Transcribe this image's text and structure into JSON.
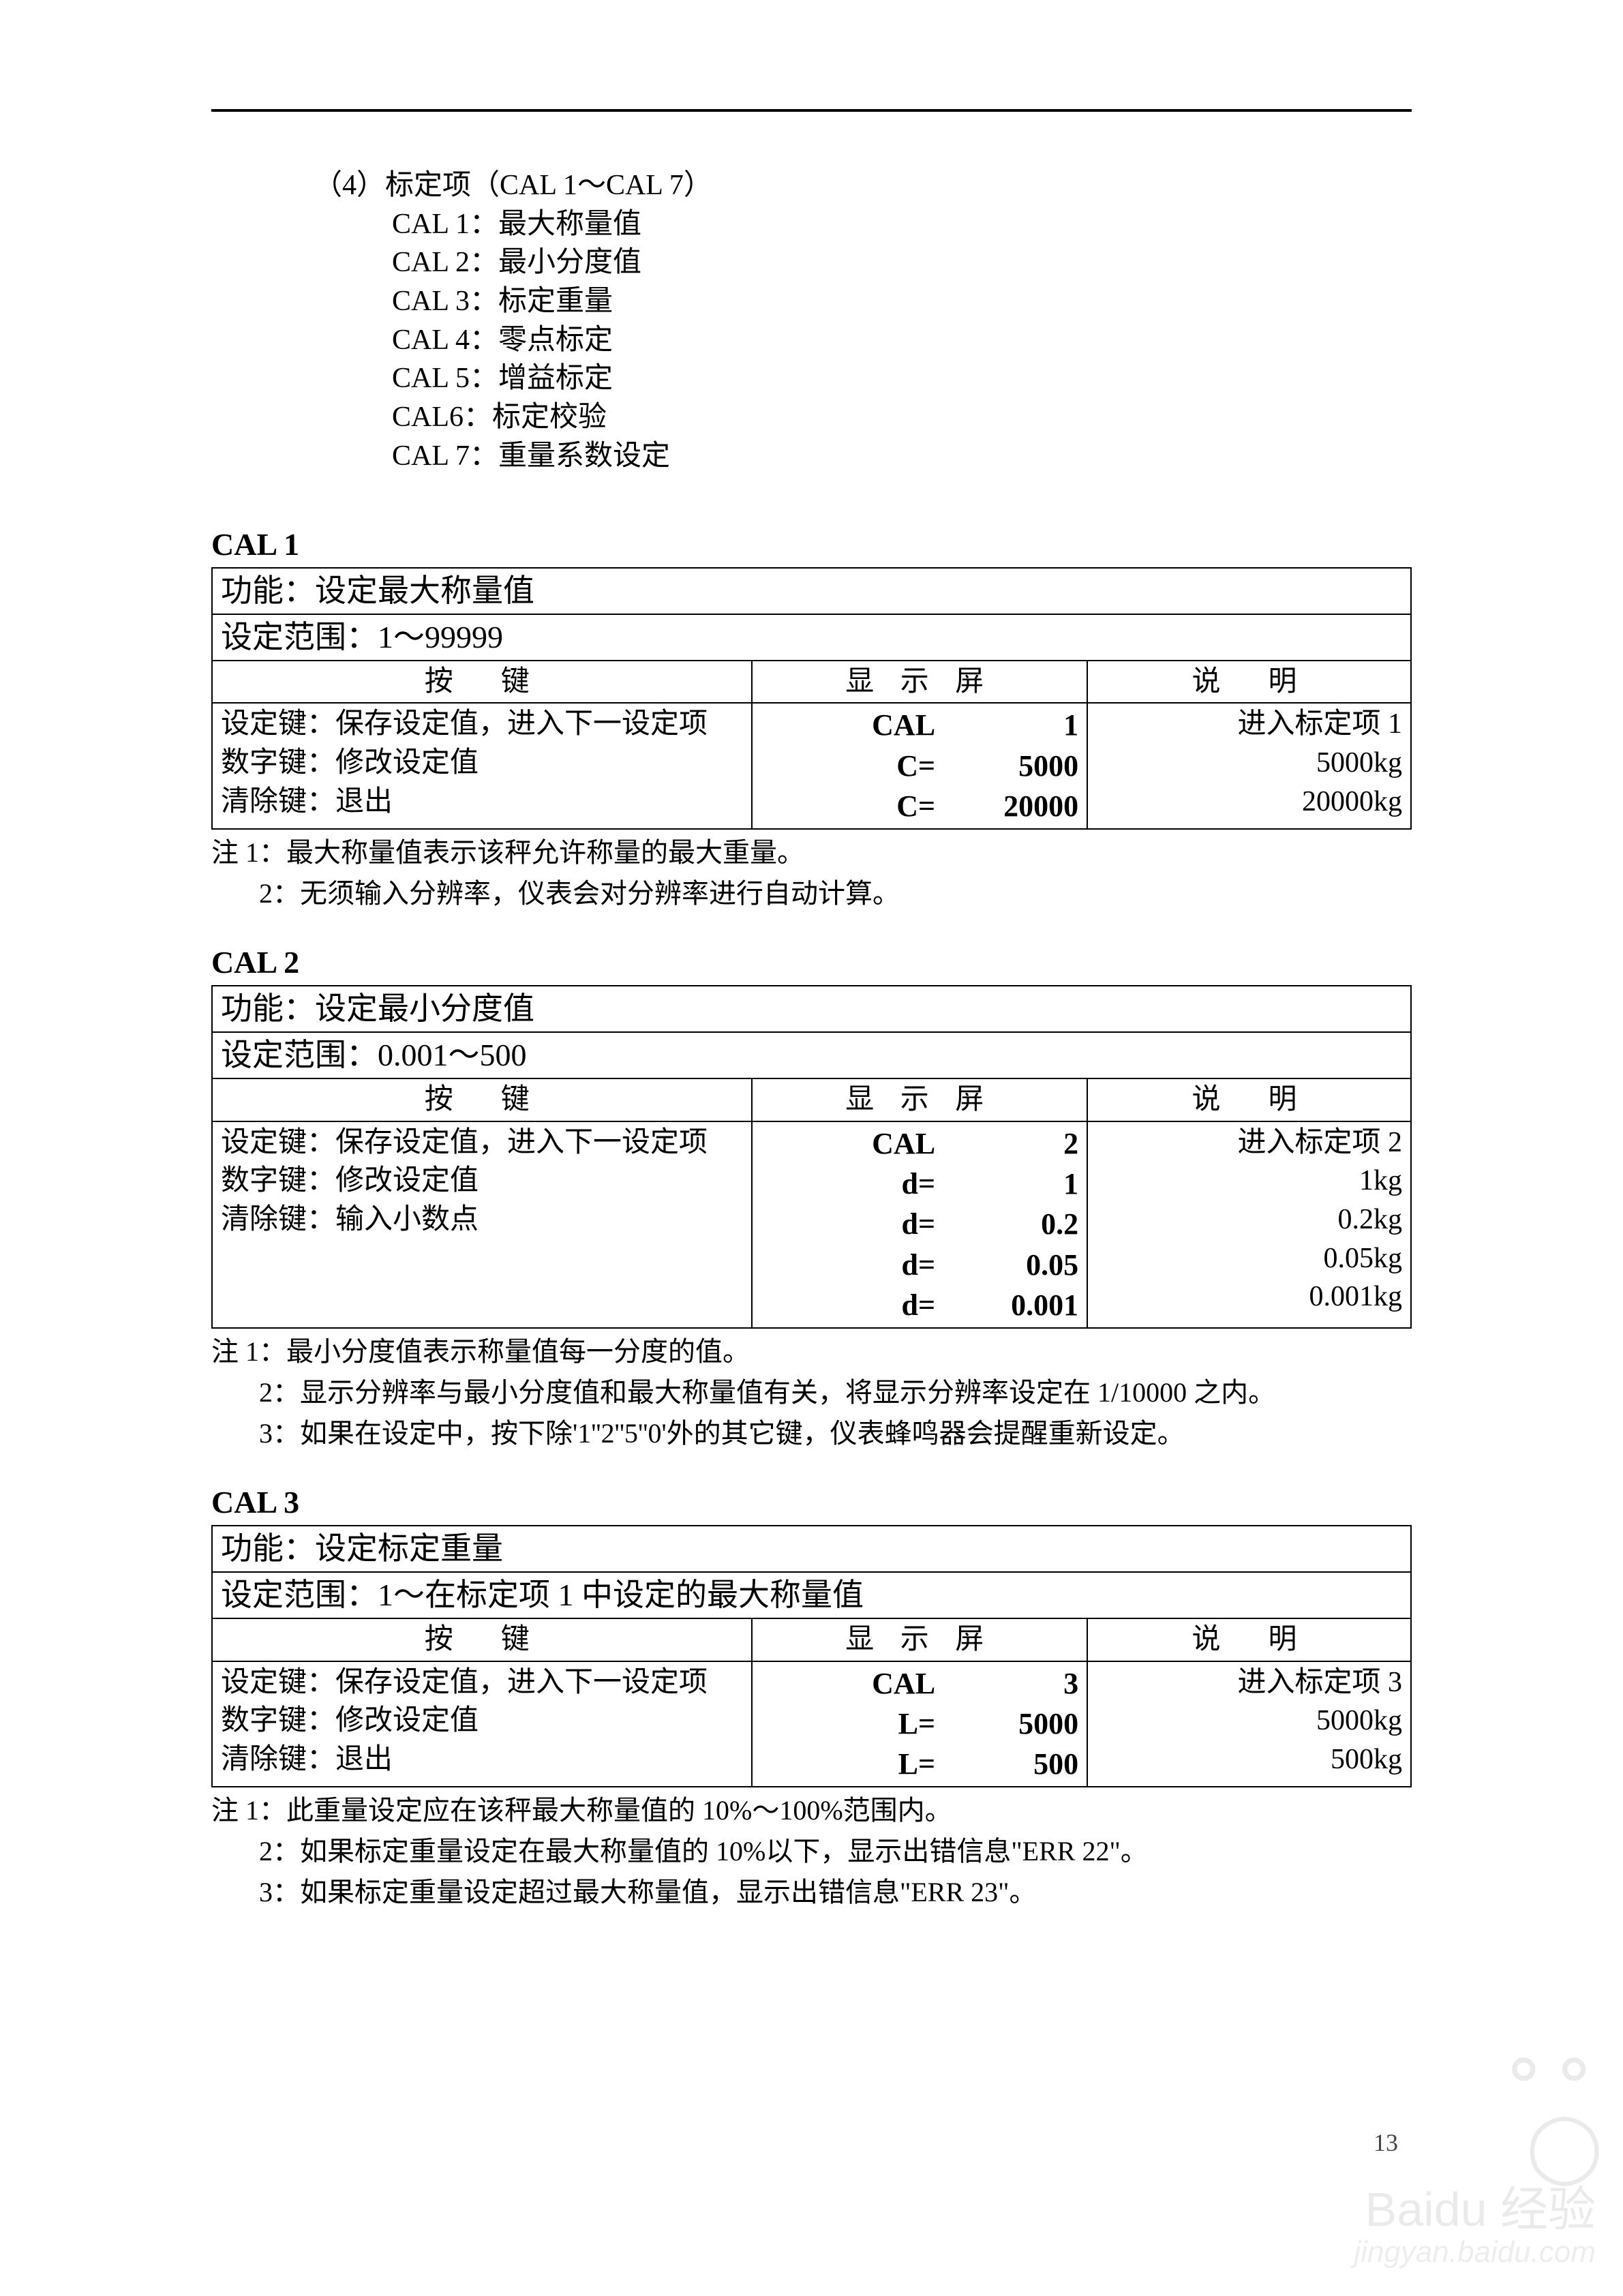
{
  "intro": {
    "heading": "（4）标定项（CAL 1～CAL 7）",
    "items": [
      "CAL 1：最大称量值",
      "CAL 2：最小分度值",
      "CAL 3：标定重量",
      "CAL 4：零点标定",
      "CAL 5：增益标定",
      "CAL6：标定校验",
      "CAL 7：重量系数设定"
    ]
  },
  "headers": {
    "key": "按　键",
    "display": "显 示 屏",
    "desc": "说　明"
  },
  "cal1": {
    "title": "CAL 1",
    "func": "功能：设定最大称量值",
    "range": "设定范围：1～99999",
    "keys": [
      "设定键：保存设定值，进入下一设定项",
      "数字键：修改设定值",
      "清除键：退出"
    ],
    "display": [
      {
        "l": "CAL",
        "r": "1"
      },
      {
        "l": "C=",
        "r": "5000"
      },
      {
        "l": "C=",
        "r": "20000"
      }
    ],
    "desc": [
      "进入标定项 1",
      "5000kg",
      "20000kg"
    ],
    "notes": [
      "注 1：最大称量值表示该秤允许称量的最大重量。",
      "2：无须输入分辨率，仪表会对分辨率进行自动计算。"
    ]
  },
  "cal2": {
    "title": "CAL 2",
    "func": "功能：设定最小分度值",
    "range": "设定范围：0.001～500",
    "keys": [
      "设定键：保存设定值，进入下一设定项",
      "数字键：修改设定值",
      "清除键：输入小数点"
    ],
    "display": [
      {
        "l": "CAL",
        "r": "2"
      },
      {
        "l": "d=",
        "r": "1"
      },
      {
        "l": "d=",
        "r": "0.2"
      },
      {
        "l": "d=",
        "r": "0.05"
      },
      {
        "l": "d=",
        "r": "0.001"
      }
    ],
    "desc": [
      "进入标定项 2",
      "1kg",
      "0.2kg",
      "0.05kg",
      "0.001kg"
    ],
    "notes": [
      "注 1：最小分度值表示称量值每一分度的值。",
      "2：显示分辨率与最小分度值和最大称量值有关，将显示分辨率设定在 1/10000 之内。",
      "3：如果在设定中，按下除'1''2''5''0'外的其它键，仪表蜂鸣器会提醒重新设定。"
    ]
  },
  "cal3": {
    "title": "CAL 3",
    "func": "功能：设定标定重量",
    "range": "设定范围：1～在标定项 1 中设定的最大称量值",
    "keys": [
      "设定键：保存设定值，进入下一设定项",
      "数字键：修改设定值",
      "清除键：退出"
    ],
    "display": [
      {
        "l": "CAL",
        "r": "3"
      },
      {
        "l": "L=",
        "r": "5000"
      },
      {
        "l": "L=",
        "r": "500"
      }
    ],
    "desc": [
      "进入标定项 3",
      "5000kg",
      "500kg"
    ],
    "notes": [
      "注 1：此重量设定应在该秤最大称量值的 10%～100%范围内。",
      "2：如果标定重量设定在最大称量值的 10%以下，显示出错信息\"ERR 22\"。",
      "3：如果标定重量设定超过最大称量值，显示出错信息\"ERR 23\"。"
    ]
  },
  "pageNumber": "13",
  "watermark": {
    "main": "Baidu 经验",
    "sub": "jingyan.baidu.com"
  }
}
